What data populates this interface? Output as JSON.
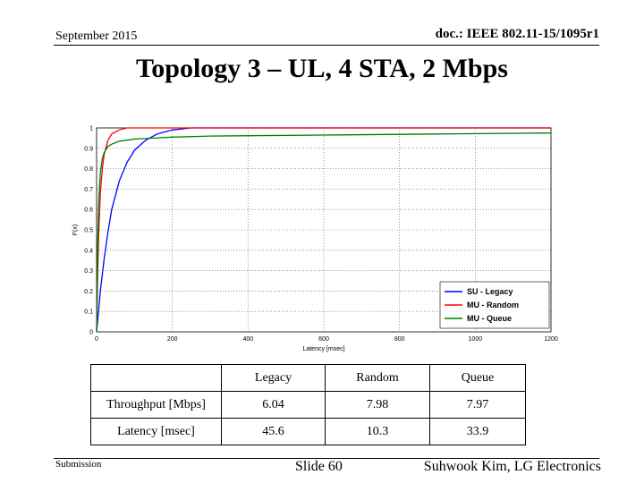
{
  "header": {
    "date": "September 2015",
    "doc_id": "doc.: IEEE 802.11-15/1095r1"
  },
  "slide": {
    "title": "Topology 3 – UL, 4 STA, 2 Mbps"
  },
  "chart_data": {
    "type": "line",
    "xlabel": "Latency [msec]",
    "ylabel": "F(x)",
    "xlim": [
      0,
      1200
    ],
    "ylim": [
      0,
      1
    ],
    "x_ticks": [
      "0",
      "200",
      "400",
      "600",
      "800",
      "1000",
      "1200"
    ],
    "y_ticks": [
      "0",
      "0.1",
      "0.2",
      "0.3",
      "0.4",
      "0.5",
      "0.6",
      "0.7",
      "0.8",
      "0.9",
      "1"
    ],
    "grid": true,
    "legend_position": "bottom-right",
    "series": [
      {
        "name": "SU - Legacy",
        "color": "#0000ff",
        "x": [
          0,
          10,
          20,
          30,
          40,
          60,
          80,
          100,
          130,
          160,
          200,
          250,
          1200
        ],
        "y": [
          0,
          0.2,
          0.36,
          0.49,
          0.6,
          0.74,
          0.83,
          0.89,
          0.94,
          0.97,
          0.99,
          1.0,
          1.0
        ]
      },
      {
        "name": "MU - Random",
        "color": "#ff0000",
        "x": [
          0,
          3,
          6,
          10,
          15,
          20,
          30,
          40,
          60,
          80,
          100,
          1200
        ],
        "y": [
          0,
          0.3,
          0.5,
          0.68,
          0.8,
          0.87,
          0.94,
          0.97,
          0.99,
          1.0,
          1.0,
          1.0
        ]
      },
      {
        "name": "MU - Queue",
        "color": "#008000",
        "x": [
          0,
          3,
          6,
          10,
          15,
          20,
          30,
          40,
          60,
          80,
          100,
          150,
          200,
          300,
          600,
          900,
          1200
        ],
        "y": [
          0,
          0.45,
          0.65,
          0.78,
          0.85,
          0.88,
          0.91,
          0.92,
          0.935,
          0.94,
          0.945,
          0.95,
          0.955,
          0.96,
          0.965,
          0.97,
          0.975
        ]
      }
    ]
  },
  "table": {
    "headers": [
      "",
      "Legacy",
      "Random",
      "Queue"
    ],
    "rows": [
      [
        "Throughput [Mbps]",
        "6.04",
        "7.98",
        "7.97"
      ],
      [
        "Latency [msec]",
        "45.6",
        "10.3",
        "33.9"
      ]
    ]
  },
  "footer": {
    "submission": "Submission",
    "slide_num": "Slide 60",
    "author": "Suhwook Kim, LG Electronics"
  }
}
